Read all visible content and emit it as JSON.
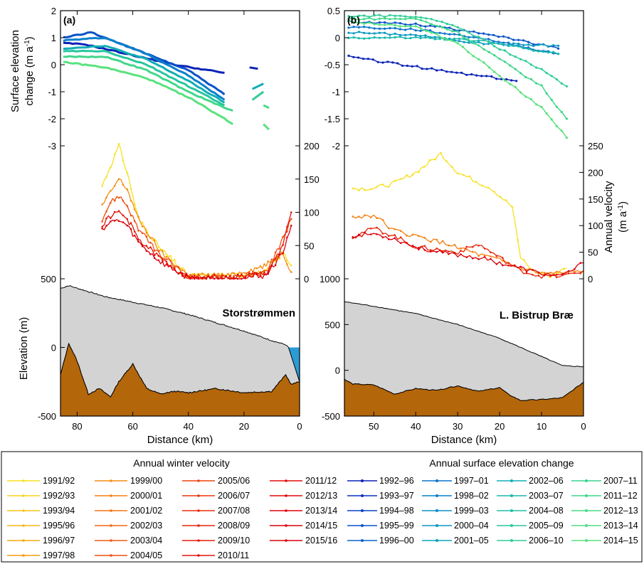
{
  "figure": {
    "panels": [
      {
        "label": "(a)",
        "glacier": "Storstrømmen"
      },
      {
        "label": "(b)",
        "glacier": "L. Bistrup Bræ"
      }
    ],
    "ylabel_dh_line1": "Surface elevation",
    "ylabel_dh_line2": "change (m a",
    "ylabel_dh_sup": "-1",
    "ylabel_dh_close": ")",
    "ylabel_vel_line1": "Annual velocity",
    "ylabel_vel_line2": "(m a",
    "ylabel_vel_sup": "-1",
    "ylabel_vel_close": ")",
    "ylabel_elev": "Elevation (m)",
    "xlabel": "Distance (km)",
    "legend_velocity_title": "Annual winter velocity",
    "legend_dh_title": "Annual surface elevation change"
  },
  "legend_velocity": [
    "1991/92",
    "1992/93",
    "1993/94",
    "1995/96",
    "1996/97",
    "1997/98",
    "1999/00",
    "2000/01",
    "2001/02",
    "2002/03",
    "2003/04",
    "2004/05",
    "2005/06",
    "2006/07",
    "2007/08",
    "2008/09",
    "2009/10",
    "2010/11",
    "2011/12",
    "2012/13",
    "2013/14",
    "2014/15",
    "2015/16"
  ],
  "legend_dh": [
    "1992–96",
    "1993–97",
    "1994–98",
    "1995–99",
    "1996–00",
    "1997–01",
    "1998–02",
    "1999–03",
    "2000–04",
    "2001–05",
    "2002–06",
    "2003–07",
    "2004–08",
    "2005–09",
    "2006–10",
    "2007–11",
    "2011–12",
    "2012–13",
    "2013–14",
    "2014–15"
  ],
  "colors": {
    "velocity": [
      "#f7e01e",
      "#f7d21c",
      "#f7c41a",
      "#f7b618",
      "#f7a816",
      "#f79a14",
      "#f68c12",
      "#f57f11",
      "#f47210",
      "#f3660f",
      "#f25a0e",
      "#f04e0d",
      "#ee430c",
      "#ec380b",
      "#ea2e0b",
      "#e8250a",
      "#e61c0a",
      "#e4140a",
      "#e20e0a",
      "#e0080a",
      "#de040a",
      "#dc020a",
      "#da000a"
    ],
    "dh": [
      "#0a22b8",
      "#0a32bf",
      "#0a42c4",
      "#0a52c8",
      "#0a62cc",
      "#0a72cd",
      "#0a80cc",
      "#0a8dc8",
      "#0a99c2",
      "#0aa4bc",
      "#10aeb5",
      "#18b7ad",
      "#20bfa6",
      "#28c69e",
      "#30cc96",
      "#38d28f",
      "#40d78a",
      "#48db86",
      "#50df82",
      "#58e27e"
    ],
    "ice": "#d3d3d3",
    "bed": "#b4660a",
    "water": "#2b9bd6"
  },
  "axes": {
    "panel_a": {
      "dh_ticks": [
        "2",
        "1",
        "0",
        "-1",
        "-2",
        "-3"
      ],
      "vel_ticks": [
        "200",
        "150",
        "100",
        "50",
        "0"
      ],
      "elev_ticks": [
        "500",
        "0",
        "-500"
      ],
      "x_ticks": [
        "80",
        "60",
        "40",
        "20",
        "0"
      ]
    },
    "panel_b": {
      "dh_ticks": [
        "0.5",
        "0",
        "-0.5",
        "-1",
        "-1.5",
        "-2"
      ],
      "vel_ticks": [
        "250",
        "200",
        "150",
        "100",
        "50",
        "0"
      ],
      "elev_ticks": [
        "1000",
        "500",
        "0",
        "-500"
      ],
      "x_ticks": [
        "50",
        "40",
        "30",
        "20",
        "10",
        "0"
      ]
    }
  },
  "chart_data": [
    {
      "panel": "(a)",
      "title": "Storstrømmen",
      "type": "line",
      "xlabel": "Distance (km)",
      "xlim": [
        86,
        0
      ],
      "subplots": {
        "surface_elevation_change": {
          "ylabel": "Surface elevation change (m a-1)",
          "ylim": [
            -3,
            2
          ],
          "series": [
            {
              "x": [
                85,
                77,
                60,
                45,
                27
              ],
              "values": [
                0.8,
                0.75,
                0.35,
                0.0,
                -0.3
              ]
            },
            {
              "x": [
                85,
                75,
                60,
                40,
                27
              ],
              "values": [
                1.0,
                1.2,
                0.6,
                -0.2,
                -1.1
              ]
            },
            {
              "x": [
                85,
                70,
                55,
                40,
                27
              ],
              "values": [
                0.9,
                1.0,
                0.4,
                -0.4,
                -1.3
              ]
            },
            {
              "x": [
                85,
                70,
                55,
                40,
                27
              ],
              "values": [
                0.6,
                0.7,
                0.2,
                -0.6,
                -1.4
              ]
            },
            {
              "x": [
                85,
                70,
                55,
                40,
                27
              ],
              "values": [
                0.5,
                0.5,
                0.0,
                -0.8,
                -1.5
              ]
            },
            {
              "x": [
                85,
                70,
                55,
                40,
                27,
                24
              ],
              "values": [
                0.3,
                0.3,
                -0.2,
                -1.0,
                -1.6,
                -1.7
              ]
            },
            {
              "x": [
                85,
                70,
                55,
                40,
                27,
                24
              ],
              "values": [
                0.1,
                -0.1,
                -0.5,
                -1.2,
                -2.0,
                -2.2
              ]
            }
          ]
        },
        "winter_velocity": {
          "ylabel": "Annual velocity (m a-1)",
          "ylim": [
            0,
            200
          ],
          "series": [
            {
              "x": [
                71,
                68,
                65,
                62,
                58,
                50,
                40,
                25,
                12,
                6,
                3
              ],
              "values": [
                140,
                170,
                200,
                160,
                90,
                45,
                5,
                5,
                10,
                40,
                20
              ]
            },
            {
              "x": [
                71,
                68,
                65,
                62,
                58,
                50,
                40,
                25,
                12,
                6,
                3
              ],
              "values": [
                110,
                130,
                150,
                135,
                90,
                40,
                5,
                5,
                20,
                40,
                10
              ]
            },
            {
              "x": [
                71,
                68,
                65,
                62,
                58,
                50,
                40,
                25,
                12,
                6,
                3
              ],
              "values": [
                90,
                115,
                125,
                110,
                75,
                35,
                3,
                3,
                10,
                60,
                90
              ]
            },
            {
              "x": [
                71,
                68,
                65,
                62,
                58,
                50,
                40,
                25,
                12,
                6,
                3
              ],
              "values": [
                80,
                95,
                100,
                90,
                60,
                30,
                2,
                2,
                8,
                50,
                100
              ]
            },
            {
              "x": [
                71,
                68,
                65,
                62,
                58,
                50,
                40,
                25,
                12,
                6,
                3
              ],
              "values": [
                75,
                85,
                88,
                80,
                55,
                25,
                1,
                1,
                5,
                40,
                80
              ]
            }
          ]
        },
        "bed_profile": {
          "ylabel": "Elevation (m)",
          "ylim": [
            -500,
            500
          ],
          "surface": {
            "x": [
              86,
              83,
              70,
              60,
              50,
              40,
              30,
              20,
              10,
              5,
              4
            ],
            "values": [
              430,
              450,
              370,
              330,
              290,
              240,
              180,
              120,
              50,
              20,
              0
            ]
          },
          "bed": {
            "x": [
              86,
              83,
              80,
              76,
              72,
              68,
              65,
              60,
              55,
              50,
              45,
              40,
              30,
              20,
              10,
              5,
              3,
              0
            ],
            "values": [
              -200,
              30,
              -100,
              -340,
              -300,
              -360,
              -250,
              -120,
              -300,
              -340,
              -320,
              -330,
              -300,
              -330,
              -320,
              -200,
              -270,
              -250
            ]
          }
        }
      }
    },
    {
      "panel": "(b)",
      "title": "L. Bistrup Bræ",
      "type": "line",
      "xlabel": "Distance (km)",
      "xlim": [
        57,
        0
      ],
      "subplots": {
        "surface_elevation_change": {
          "ylabel": "Surface elevation change (m a-1)",
          "ylim": [
            -2,
            0.5
          ],
          "series": [
            {
              "x": [
                56,
                35,
                16
              ],
              "values": [
                -0.35,
                -0.6,
                -0.8
              ]
            },
            {
              "x": [
                56,
                40,
                25,
                6
              ],
              "values": [
                0.3,
                0.25,
                0.1,
                -0.2
              ]
            },
            {
              "x": [
                56,
                40,
                25,
                6
              ],
              "values": [
                0.2,
                0.15,
                0.0,
                -0.3
              ]
            },
            {
              "x": [
                56,
                40,
                25,
                6
              ],
              "values": [
                0.1,
                0.05,
                -0.1,
                -0.15
              ]
            },
            {
              "x": [
                56,
                40,
                25,
                6
              ],
              "values": [
                0.0,
                0.0,
                -0.05,
                -0.3
              ]
            },
            {
              "x": [
                56,
                40,
                30,
                20,
                10,
                4
              ],
              "values": [
                0.4,
                0.4,
                0.2,
                -0.2,
                -0.6,
                -0.9
              ]
            },
            {
              "x": [
                56,
                40,
                30,
                20,
                10,
                4
              ],
              "values": [
                0.35,
                0.35,
                0.1,
                -0.4,
                -0.9,
                -1.5
              ]
            },
            {
              "x": [
                56,
                40,
                30,
                20,
                10,
                4
              ],
              "values": [
                0.3,
                0.2,
                -0.1,
                -0.7,
                -1.3,
                -1.85
              ]
            }
          ]
        },
        "winter_velocity": {
          "ylabel": "Annual velocity (m a-1)",
          "ylim": [
            0,
            250
          ],
          "series": [
            {
              "x": [
                55,
                50,
                45,
                40,
                34,
                30,
                22,
                17,
                15,
                12,
                8,
                4
              ],
              "values": [
                170,
                170,
                180,
                200,
                235,
                200,
                170,
                135,
                40,
                15,
                5,
                20
              ]
            },
            {
              "x": [
                55,
                50,
                45,
                40,
                35,
                30,
                25,
                20,
                15,
                10,
                5,
                0
              ],
              "values": [
                115,
                120,
                90,
                80,
                70,
                60,
                45,
                35,
                20,
                10,
                10,
                15
              ]
            },
            {
              "x": [
                55,
                50,
                45,
                40,
                35,
                30,
                25,
                20,
                15,
                10,
                5,
                0
              ],
              "values": [
                80,
                95,
                80,
                60,
                55,
                50,
                65,
                40,
                15,
                5,
                5,
                15
              ]
            },
            {
              "x": [
                55,
                50,
                45,
                40,
                35,
                30,
                25,
                20,
                15,
                10,
                5,
                0
              ],
              "values": [
                80,
                85,
                75,
                60,
                50,
                45,
                40,
                30,
                20,
                10,
                5,
                30
              ]
            }
          ]
        },
        "bed_profile": {
          "ylabel": "Elevation (m)",
          "ylim": [
            -500,
            1000
          ],
          "surface": {
            "x": [
              57,
              50,
              40,
              30,
              20,
              10,
              5,
              0
            ],
            "values": [
              750,
              700,
              620,
              500,
              350,
              150,
              50,
              40
            ]
          },
          "bed": {
            "x": [
              57,
              55,
              50,
              45,
              40,
              35,
              30,
              25,
              20,
              18,
              15,
              10,
              5,
              0
            ],
            "values": [
              -100,
              -150,
              -160,
              -260,
              -200,
              -220,
              -170,
              -230,
              -190,
              -260,
              -330,
              -320,
              -300,
              -130
            ]
          }
        }
      }
    }
  ]
}
